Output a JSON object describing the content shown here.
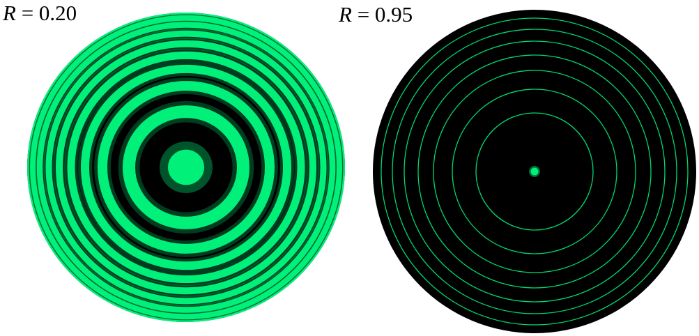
{
  "panels": [
    {
      "label_variable": "R",
      "label_equals": " = ",
      "label_value": "0.20",
      "reflectance": 0.2,
      "fringe_color": "#00f07a",
      "background_color": "#000000",
      "visible_bright_rings": 9,
      "center": "bright spot"
    },
    {
      "label_variable": "R",
      "label_equals": " = ",
      "label_value": "0.95",
      "reflectance": 0.95,
      "fringe_color": "#00f07a",
      "background_color": "#000000",
      "visible_bright_rings": 8,
      "center": "bright spot"
    }
  ]
}
